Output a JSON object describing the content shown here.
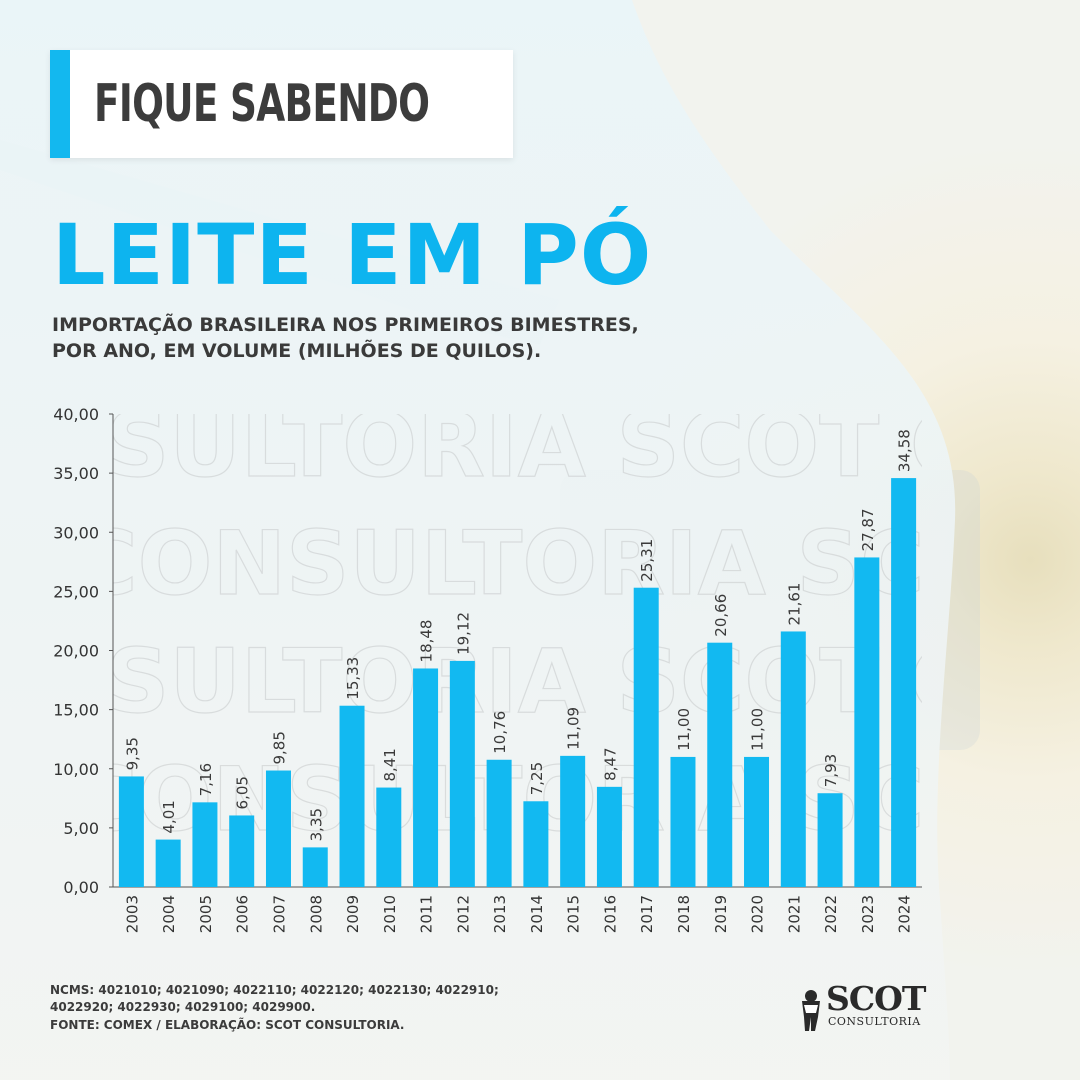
{
  "header": {
    "badge_label": "FIQUE SABENDO"
  },
  "title": "LEITE EM PÓ",
  "subtitle": {
    "line1": "IMPORTAÇÃO BRASILEIRA NOS PRIMEIROS BIMESTRES,",
    "line2": "POR ANO, EM VOLUME (MILHÕES DE QUILOS)."
  },
  "watermark_text": "CONSULTORIA SCOT",
  "chart_data": {
    "type": "bar",
    "categories": [
      "2003",
      "2004",
      "2005",
      "2006",
      "2007",
      "2008",
      "2009",
      "2010",
      "2011",
      "2012",
      "2013",
      "2014",
      "2015",
      "2016",
      "2017",
      "2018",
      "2019",
      "2020",
      "2021",
      "2022",
      "2023",
      "2024"
    ],
    "values": [
      9.35,
      4.01,
      7.16,
      6.05,
      9.85,
      3.35,
      15.33,
      8.41,
      18.48,
      19.12,
      10.76,
      7.25,
      11.09,
      8.47,
      25.31,
      11.0,
      20.66,
      11.0,
      21.61,
      7.93,
      27.87,
      34.58
    ],
    "value_labels": [
      "9,35",
      "4,01",
      "7,16",
      "6,05",
      "9,85",
      "3,35",
      "15,33",
      "8,41",
      "18,48",
      "19,12",
      "10,76",
      "7,25",
      "11,09",
      "8,47",
      "25,31",
      "11,00",
      "20,66",
      "11,00",
      "21,61",
      "7,93",
      "27,87",
      "34,58"
    ],
    "y_ticks": [
      "0,00",
      "5,00",
      "10,00",
      "15,00",
      "20,00",
      "25,00",
      "30,00",
      "35,00",
      "40,00"
    ],
    "ylim": [
      0,
      40
    ],
    "grid": false,
    "bar_color": "#12b9f1"
  },
  "footer": {
    "ncms_line1": "NCMS: 4021010; 4021090; 4022110; 4022120; 4022130; 4022910;",
    "ncms_line2": "4022920; 4022930; 4029100; 4029900.",
    "source": "FONTE: COMEX / ELABORAÇÃO: SCOT CONSULTORIA."
  },
  "logo": {
    "word": "SCOT",
    "sub": "CONSULTORIA"
  },
  "colors": {
    "accent": "#13b8ef",
    "title": "#0db4ef",
    "text": "#3a3a3a"
  }
}
